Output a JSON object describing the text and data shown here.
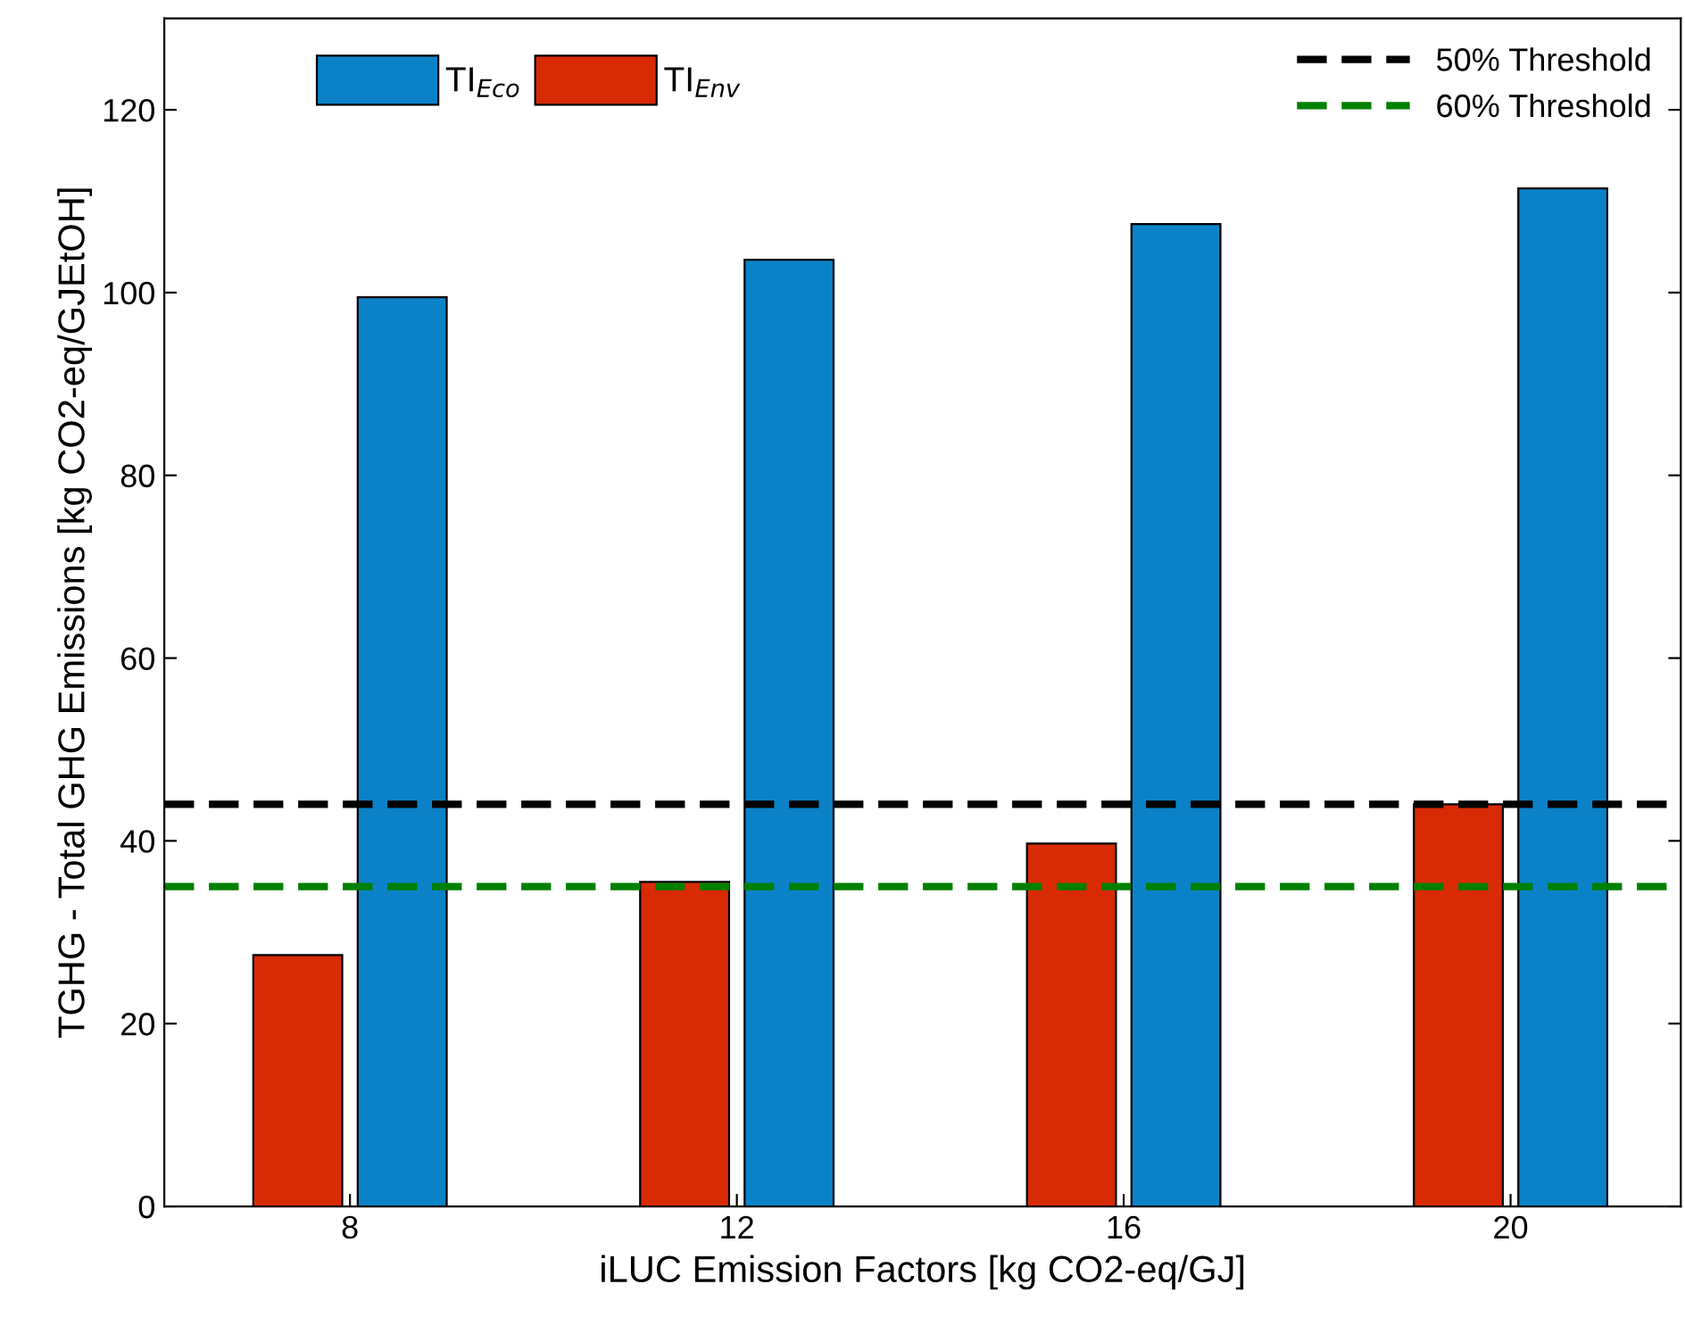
{
  "chart_data": {
    "type": "bar",
    "xlabel": "iLUC Emission Factors [kg CO2-eq/GJ]",
    "ylabel": "TGHG - Total GHG Emissions [kg CO2-eq/GJEtOH]",
    "categories": [
      "8",
      "12",
      "16",
      "20"
    ],
    "series": [
      {
        "name": "TI$_{Env}$",
        "color": "#d92a06",
        "values": [
          27.5,
          35.5,
          39.7,
          44
        ]
      },
      {
        "name": "TI$_{Eco}$",
        "color": "#0b82c8",
        "values": [
          99.5,
          103.6,
          107.5,
          111.4
        ]
      }
    ],
    "ylim": [
      0,
      130
    ],
    "yticks": [
      0,
      20,
      40,
      60,
      80,
      100,
      120
    ],
    "ref_lines": [
      {
        "axis": "y",
        "value": 44,
        "label": "50% Threshold",
        "color": "#000000",
        "line_style": "dashed"
      },
      {
        "axis": "y",
        "value": 35,
        "label": "60% Threshold",
        "color": "#008000",
        "line_style": "dashed"
      }
    ],
    "legend": "top left",
    "grid": false
  }
}
